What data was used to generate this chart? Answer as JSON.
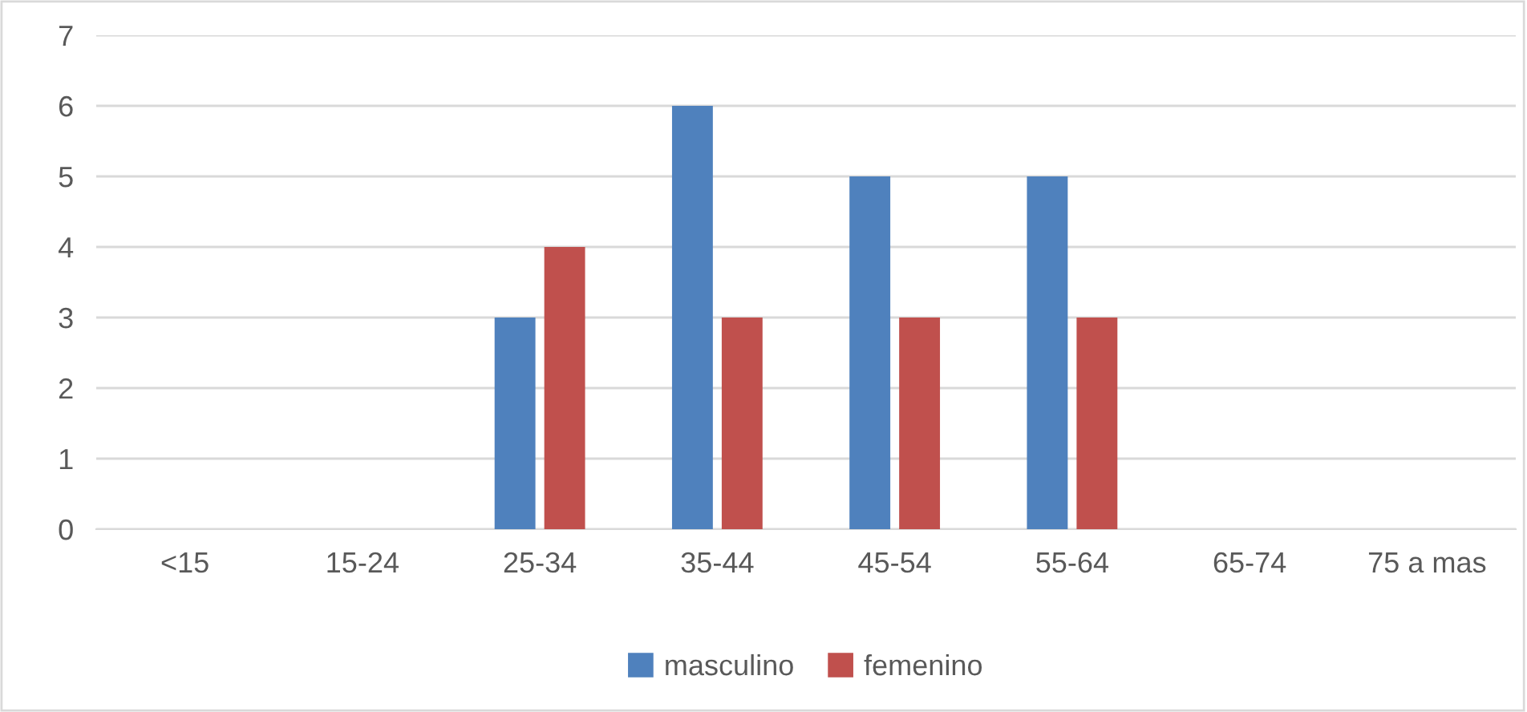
{
  "chart_data": {
    "type": "bar",
    "categories": [
      "<15",
      "15-24",
      "25-34",
      "35-44",
      "45-54",
      "55-64",
      "65-74",
      "75 a mas"
    ],
    "series": [
      {
        "name": "masculino",
        "color": "#4f81bd",
        "values": [
          0,
          0,
          3,
          6,
          5,
          5,
          0,
          0
        ]
      },
      {
        "name": "femenino",
        "color": "#c0504d",
        "values": [
          0,
          0,
          4,
          3,
          3,
          3,
          0,
          0
        ]
      }
    ],
    "ylim": [
      0,
      7
    ],
    "yticks": [
      0,
      1,
      2,
      3,
      4,
      5,
      6,
      7
    ],
    "grid": "y",
    "legend": "bottom"
  }
}
